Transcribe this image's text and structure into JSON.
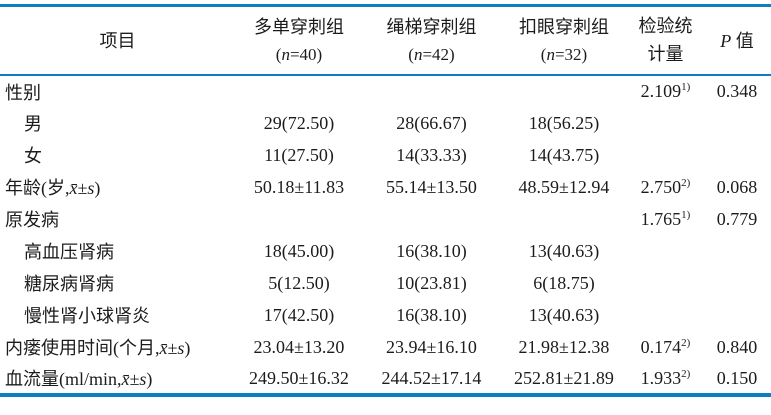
{
  "colors": {
    "rule_blue": "#0d7ec1",
    "text": "#1c1c1c",
    "background": "#ffffff"
  },
  "table": {
    "header": {
      "item": "项目",
      "groups": [
        {
          "name": "多单穿刺组",
          "n_pre": "(",
          "n_italic": "n",
          "n_post": "=40)"
        },
        {
          "name": "绳梯穿刺组",
          "n_pre": "(",
          "n_italic": "n",
          "n_post": "=42)"
        },
        {
          "name": "扣眼穿刺组",
          "n_pre": "(",
          "n_italic": "n",
          "n_post": "=32)"
        }
      ],
      "stat_line1": "检验统",
      "stat_line2": "计量",
      "p_italic": "P",
      "p_rest": " 值"
    },
    "rows": [
      {
        "label_pre": "性别",
        "math": "",
        "label_post": "",
        "indent": false,
        "cells": [
          "",
          "",
          ""
        ],
        "stat": "2.109",
        "stat_sup": "1)",
        "p": "0.348"
      },
      {
        "label_pre": "男",
        "math": "",
        "label_post": "",
        "indent": true,
        "cells": [
          "29(72.50)",
          "28(66.67)",
          "18(56.25)"
        ],
        "stat": "",
        "stat_sup": "",
        "p": ""
      },
      {
        "label_pre": "女",
        "math": "",
        "label_post": "",
        "indent": true,
        "cells": [
          "11(27.50)",
          "14(33.33)",
          "14(43.75)"
        ],
        "stat": "",
        "stat_sup": "",
        "p": ""
      },
      {
        "label_pre": "年龄(岁,",
        "math": "x̄±s",
        "label_post": ")",
        "indent": false,
        "cells": [
          "50.18±11.83",
          "55.14±13.50",
          "48.59±12.94"
        ],
        "stat": "2.750",
        "stat_sup": "2)",
        "p": "0.068"
      },
      {
        "label_pre": "原发病",
        "math": "",
        "label_post": "",
        "indent": false,
        "cells": [
          "",
          "",
          ""
        ],
        "stat": "1.765",
        "stat_sup": "1)",
        "p": "0.779"
      },
      {
        "label_pre": "高血压肾病",
        "math": "",
        "label_post": "",
        "indent": true,
        "cells": [
          "18(45.00)",
          "16(38.10)",
          "13(40.63)"
        ],
        "stat": "",
        "stat_sup": "",
        "p": ""
      },
      {
        "label_pre": "糖尿病肾病",
        "math": "",
        "label_post": "",
        "indent": true,
        "cells": [
          "5(12.50)",
          "10(23.81)",
          "6(18.75)"
        ],
        "stat": "",
        "stat_sup": "",
        "p": ""
      },
      {
        "label_pre": "慢性肾小球肾炎",
        "math": "",
        "label_post": "",
        "indent": true,
        "cells": [
          "17(42.50)",
          "16(38.10)",
          "13(40.63)"
        ],
        "stat": "",
        "stat_sup": "",
        "p": ""
      },
      {
        "label_pre": "内瘘使用时间(个月,",
        "math": "x̄±s",
        "label_post": ")",
        "indent": false,
        "cells": [
          "23.04±13.20",
          "23.94±16.10",
          "21.98±12.38"
        ],
        "stat": "0.174",
        "stat_sup": "2)",
        "p": "0.840"
      },
      {
        "label_pre": "血流量(ml/min,",
        "math": "x̄±s",
        "label_post": ")",
        "indent": false,
        "cells": [
          "249.50±16.32",
          "244.52±17.14",
          "252.81±21.89"
        ],
        "stat": "1.933",
        "stat_sup": "2)",
        "p": "0.150"
      }
    ]
  }
}
